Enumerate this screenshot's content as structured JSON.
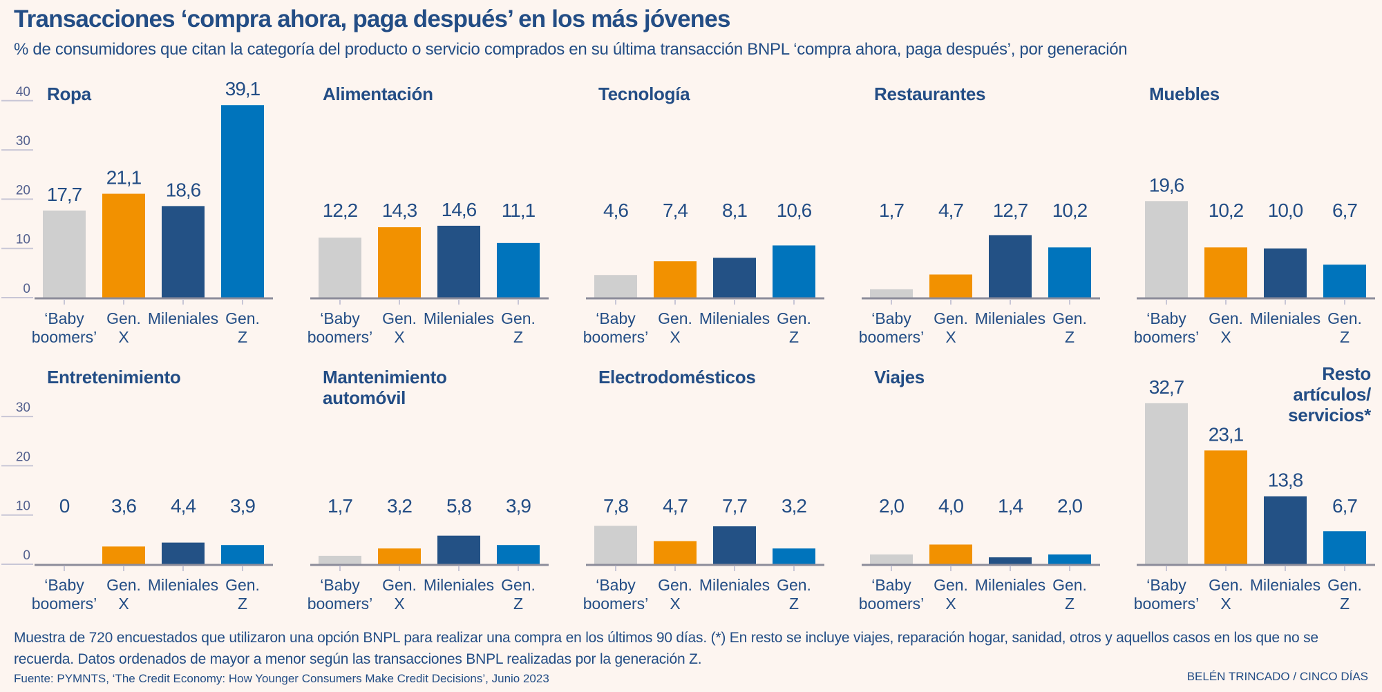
{
  "header": {
    "title": "Transacciones ‘compra ahora, paga después’ en los más jóvenes",
    "subtitle": "% de consumidores que citan la categoría del producto o servicio comprados en su última transacción BNPL ‘compra ahora, paga después’, por generación"
  },
  "colors": {
    "background": "#fdf5f0",
    "text": "#234d85",
    "baby_boomers": "#cfcfcf",
    "gen_x": "#f29100",
    "mileniales": "#235185",
    "gen_z": "#0074bc",
    "axis": "#8c8c9a",
    "grid": "#c8c6d6"
  },
  "chart_data": {
    "type": "bar",
    "layout": "small-multiples",
    "title": "Transacciones ‘compra ahora, paga después’ en los más jóvenes",
    "ylabel": "%",
    "categories": [
      "‘Baby boomers’",
      "Gen. X",
      "Mileniales",
      "Gen. Z"
    ],
    "category_lines": [
      [
        "‘Baby",
        "boomers’"
      ],
      [
        "Gen.",
        "X"
      ],
      [
        "Mileniales"
      ],
      [
        "Gen.",
        "Z"
      ]
    ],
    "row_axes": [
      {
        "ylim": [
          0,
          40
        ],
        "ticks": [
          0,
          10,
          20,
          30,
          40
        ],
        "grid": true
      },
      {
        "ylim": [
          0,
          30
        ],
        "ticks": [
          0,
          10,
          20,
          30
        ],
        "grid": true
      }
    ],
    "panels": [
      {
        "title": [
          "Ropa"
        ],
        "values": [
          17.7,
          21.1,
          18.6,
          39.1
        ],
        "labels": [
          "17,7",
          "21,1",
          "18,6",
          "39,1"
        ]
      },
      {
        "title": [
          "Alimentación"
        ],
        "values": [
          12.2,
          14.3,
          14.6,
          11.1
        ],
        "labels": [
          "12,2",
          "14,3",
          "14,6",
          "11,1"
        ]
      },
      {
        "title": [
          "Tecnología"
        ],
        "values": [
          4.6,
          7.4,
          8.1,
          10.6
        ],
        "labels": [
          "4,6",
          "7,4",
          "8,1",
          "10,6"
        ]
      },
      {
        "title": [
          "Restaurantes"
        ],
        "values": [
          1.7,
          4.7,
          12.7,
          10.2
        ],
        "labels": [
          "1,7",
          "4,7",
          "12,7",
          "10,2"
        ]
      },
      {
        "title": [
          "Muebles"
        ],
        "values": [
          19.6,
          10.2,
          10.0,
          6.7
        ],
        "labels": [
          "19,6",
          "10,2",
          "10,0",
          "6,7"
        ]
      },
      {
        "title": [
          "Entretenimiento"
        ],
        "values": [
          0,
          3.6,
          4.4,
          3.9
        ],
        "labels": [
          "0",
          "3,6",
          "4,4",
          "3,9"
        ]
      },
      {
        "title": [
          "Mantenimiento",
          "automóvil"
        ],
        "values": [
          1.7,
          3.2,
          5.8,
          3.9
        ],
        "labels": [
          "1,7",
          "3,2",
          "5,8",
          "3,9"
        ]
      },
      {
        "title": [
          "Electrodomésticos"
        ],
        "values": [
          7.8,
          4.7,
          7.7,
          3.2
        ],
        "labels": [
          "7,8",
          "4,7",
          "7,7",
          "3,2"
        ]
      },
      {
        "title": [
          "Viajes"
        ],
        "values": [
          2.0,
          4.0,
          1.4,
          2.0
        ],
        "labels": [
          "2,0",
          "4,0",
          "1,4",
          "2,0"
        ]
      },
      {
        "title": [
          "Resto",
          "artículos/",
          "servicios*"
        ],
        "title_align": "right",
        "values": [
          32.7,
          23.1,
          13.8,
          6.7
        ],
        "labels": [
          "32,7",
          "23,1",
          "13,8",
          "6,7"
        ]
      }
    ]
  },
  "footer": {
    "note": "Muestra de 720 encuestados que utilizaron una opción BNPL para realizar una compra en los últimos 90 días. (*) En resto se incluye viajes, reparación hogar, sanidad, otros y aquellos casos en los que no se recuerda. Datos ordenados de mayor a menor según las transacciones BNPL realizadas por la generación Z.",
    "source": "Fuente: PYMNTS, ‘The Credit Economy: How Younger Consumers Make Credit Decisions’, Junio 2023",
    "credit": "BELÉN TRINCADO / CINCO DÍAS"
  }
}
